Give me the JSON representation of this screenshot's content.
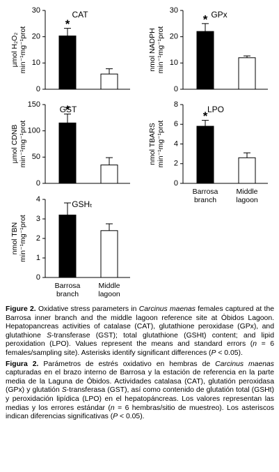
{
  "chart_data": [
    {
      "type": "bar",
      "title": "CAT",
      "y_label": [
        "µmol H₂O₂",
        "min⁻¹mg⁻¹prot"
      ],
      "categories": [
        null,
        null
      ],
      "values": [
        20.3,
        5.8
      ],
      "errors": [
        2.9,
        2.0
      ],
      "colors": [
        "#000000",
        "#ffffff"
      ],
      "annotations": [
        "*",
        null
      ],
      "ylim": [
        0,
        30
      ],
      "yticks": [
        0,
        10,
        20,
        30
      ]
    },
    {
      "type": "bar",
      "title": "GPx",
      "y_label": [
        "nmol NADPH",
        "min⁻¹mg⁻¹prot"
      ],
      "categories": [
        null,
        null
      ],
      "values": [
        22,
        12
      ],
      "errors": [
        3,
        0.7
      ],
      "colors": [
        "#000000",
        "#ffffff"
      ],
      "annotations": [
        "*",
        null
      ],
      "ylim": [
        0,
        30
      ],
      "yticks": [
        0,
        10,
        20,
        30
      ]
    },
    {
      "type": "bar",
      "title": "GST",
      "y_label": [
        "µmol CDNB",
        "min⁻¹mg⁻¹prot"
      ],
      "categories": [
        null,
        null
      ],
      "values": [
        115,
        35
      ],
      "errors": [
        17,
        14
      ],
      "colors": [
        "#000000",
        "#ffffff"
      ],
      "annotations": [
        "*",
        null
      ],
      "ylim": [
        0,
        150
      ],
      "yticks": [
        0,
        50,
        100,
        150
      ]
    },
    {
      "type": "bar",
      "title": "LPO",
      "y_label": [
        "nmol TBARS",
        "min⁻¹mg⁻¹prot"
      ],
      "categories": [
        "Barrosa branch",
        "Middle lagoon"
      ],
      "values": [
        5.8,
        2.6
      ],
      "errors": [
        0.6,
        0.5
      ],
      "colors": [
        "#000000",
        "#ffffff"
      ],
      "annotations": [
        "*",
        null
      ],
      "ylim": [
        0,
        8
      ],
      "yticks": [
        0,
        2,
        4,
        6,
        8
      ]
    },
    {
      "type": "bar",
      "title": "GSHₜ",
      "y_label": [
        "nmol TBN",
        "min⁻¹mg⁻¹prot"
      ],
      "categories": [
        "Barrosa branch",
        "Middle lagoon"
      ],
      "values": [
        3.2,
        2.4
      ],
      "errors": [
        0.62,
        0.35
      ],
      "colors": [
        "#000000",
        "#ffffff"
      ],
      "annotations": [
        null,
        null
      ],
      "ylim": [
        0,
        4
      ],
      "yticks": [
        0,
        1,
        2,
        3,
        4
      ]
    }
  ],
  "caption": {
    "english": [
      "Figure 2.",
      " Oxidative stress parameters in ",
      "Carcinus maenas",
      " females captured at the Barrosa inner branch and the middle lagoon reference site at Óbidos Lagoon. Hepatopancreas activities of catalase (CAT), glutathione peroxidase (GPx), and glutathione ",
      "S",
      "-transferase (GST); total glutathione (GSHt) content; and lipid peroxidation (LPO). Values represent the means and standard errors (",
      "n",
      " = 6 females/sampling site). Asterisks identify significant differences (",
      "P",
      " < 0.05)."
    ],
    "spanish": [
      "Figura 2.",
      " Parámetros de estrés oxidativo en hembras de ",
      "Carcinus maenas",
      " capturadas en el brazo interno de Barrosa y la estación de referencia en la parte media de la Laguna de Óbidos. Actividades catalasa (CAT), glutatión peroxidasa (GPx) y glutatión ",
      "S",
      "-transferasa (GST), así como contenido de glutatión total (GSHt) y peroxidación lipídica (LPO) en el hepatopáncreas. Los valores representan las medias y los errores estándar (",
      "n",
      " = 6 hembras/sitio de muestreo). Los asteriscos indican diferencias significativas (",
      "P",
      " < 0.05)."
    ]
  }
}
